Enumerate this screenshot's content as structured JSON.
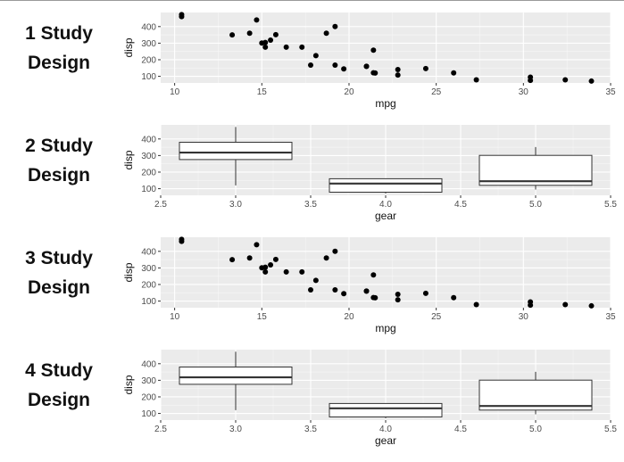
{
  "rows": [
    {
      "title_line1": "1 Study",
      "title_line2": "Design"
    },
    {
      "title_line1": "2 Study",
      "title_line2": "Design"
    },
    {
      "title_line1": "3 Study",
      "title_line2": "Design"
    },
    {
      "title_line1": "4 Study",
      "title_line2": "Design"
    }
  ],
  "colors": {
    "panel_background": "#ebebeb",
    "grid_major": "#ffffff",
    "point": "#000000",
    "box_fill": "#ffffff",
    "box_line": "#333333"
  },
  "chart_data": [
    {
      "type": "scatter",
      "xlabel": "mpg",
      "ylabel": "disp",
      "xlim": [
        9.2,
        35.0
      ],
      "ylim": [
        60,
        485
      ],
      "xticks": [
        10,
        15,
        20,
        25,
        30,
        35
      ],
      "yticks": [
        100,
        200,
        300,
        400
      ],
      "grid": true,
      "points": [
        [
          21.0,
          160
        ],
        [
          21.0,
          160
        ],
        [
          22.8,
          108
        ],
        [
          21.4,
          258
        ],
        [
          18.7,
          360
        ],
        [
          18.1,
          225
        ],
        [
          14.3,
          360
        ],
        [
          24.4,
          146.7
        ],
        [
          22.8,
          140.8
        ],
        [
          19.2,
          167.6
        ],
        [
          17.8,
          167.6
        ],
        [
          16.4,
          275.8
        ],
        [
          17.3,
          275.8
        ],
        [
          15.2,
          275.8
        ],
        [
          10.4,
          472
        ],
        [
          10.4,
          460
        ],
        [
          14.7,
          440
        ],
        [
          32.4,
          78.7
        ],
        [
          30.4,
          75.7
        ],
        [
          33.9,
          71.1
        ],
        [
          21.5,
          120.1
        ],
        [
          15.5,
          318
        ],
        [
          15.2,
          304
        ],
        [
          13.3,
          350
        ],
        [
          19.2,
          400
        ],
        [
          27.3,
          79
        ],
        [
          26.0,
          120.3
        ],
        [
          30.4,
          95.1
        ],
        [
          15.8,
          351
        ],
        [
          19.7,
          145
        ],
        [
          15.0,
          301
        ],
        [
          21.4,
          121
        ]
      ]
    },
    {
      "type": "box",
      "xlabel": "gear",
      "ylabel": "disp",
      "xlim": [
        2.5,
        5.5
      ],
      "ylim": [
        60,
        485
      ],
      "xticks": [
        2.5,
        3.0,
        3.5,
        4.0,
        4.5,
        5.0,
        5.5
      ],
      "yticks": [
        100,
        200,
        300,
        400
      ],
      "grid": true,
      "boxes": [
        {
          "x": 3,
          "min": 120.1,
          "q1": 275.8,
          "median": 318,
          "q3": 380,
          "max": 472
        },
        {
          "x": 4,
          "min": 71.1,
          "q1": 78.9,
          "median": 130.9,
          "q3": 160,
          "max": 160
        },
        {
          "x": 5,
          "min": 95.1,
          "q1": 120.3,
          "median": 145,
          "q3": 301,
          "max": 351
        }
      ]
    },
    {
      "type": "scatter",
      "xlabel": "mpg",
      "ylabel": "disp",
      "xlim": [
        9.2,
        35.0
      ],
      "ylim": [
        60,
        485
      ],
      "xticks": [
        10,
        15,
        20,
        25,
        30,
        35
      ],
      "yticks": [
        100,
        200,
        300,
        400
      ],
      "grid": true,
      "points": [
        [
          21.0,
          160
        ],
        [
          21.0,
          160
        ],
        [
          22.8,
          108
        ],
        [
          21.4,
          258
        ],
        [
          18.7,
          360
        ],
        [
          18.1,
          225
        ],
        [
          14.3,
          360
        ],
        [
          24.4,
          146.7
        ],
        [
          22.8,
          140.8
        ],
        [
          19.2,
          167.6
        ],
        [
          17.8,
          167.6
        ],
        [
          16.4,
          275.8
        ],
        [
          17.3,
          275.8
        ],
        [
          15.2,
          275.8
        ],
        [
          10.4,
          472
        ],
        [
          10.4,
          460
        ],
        [
          14.7,
          440
        ],
        [
          32.4,
          78.7
        ],
        [
          30.4,
          75.7
        ],
        [
          33.9,
          71.1
        ],
        [
          21.5,
          120.1
        ],
        [
          15.5,
          318
        ],
        [
          15.2,
          304
        ],
        [
          13.3,
          350
        ],
        [
          19.2,
          400
        ],
        [
          27.3,
          79
        ],
        [
          26.0,
          120.3
        ],
        [
          30.4,
          95.1
        ],
        [
          15.8,
          351
        ],
        [
          19.7,
          145
        ],
        [
          15.0,
          301
        ],
        [
          21.4,
          121
        ]
      ]
    },
    {
      "type": "box",
      "xlabel": "gear",
      "ylabel": "disp",
      "xlim": [
        2.5,
        5.5
      ],
      "ylim": [
        60,
        485
      ],
      "xticks": [
        2.5,
        3.0,
        3.5,
        4.0,
        4.5,
        5.0,
        5.5
      ],
      "yticks": [
        100,
        200,
        300,
        400
      ],
      "grid": true,
      "boxes": [
        {
          "x": 3,
          "min": 120.1,
          "q1": 275.8,
          "median": 318,
          "q3": 380,
          "max": 472
        },
        {
          "x": 4,
          "min": 71.1,
          "q1": 78.9,
          "median": 130.9,
          "q3": 160,
          "max": 160
        },
        {
          "x": 5,
          "min": 95.1,
          "q1": 120.3,
          "median": 145,
          "q3": 301,
          "max": 351
        }
      ]
    }
  ]
}
